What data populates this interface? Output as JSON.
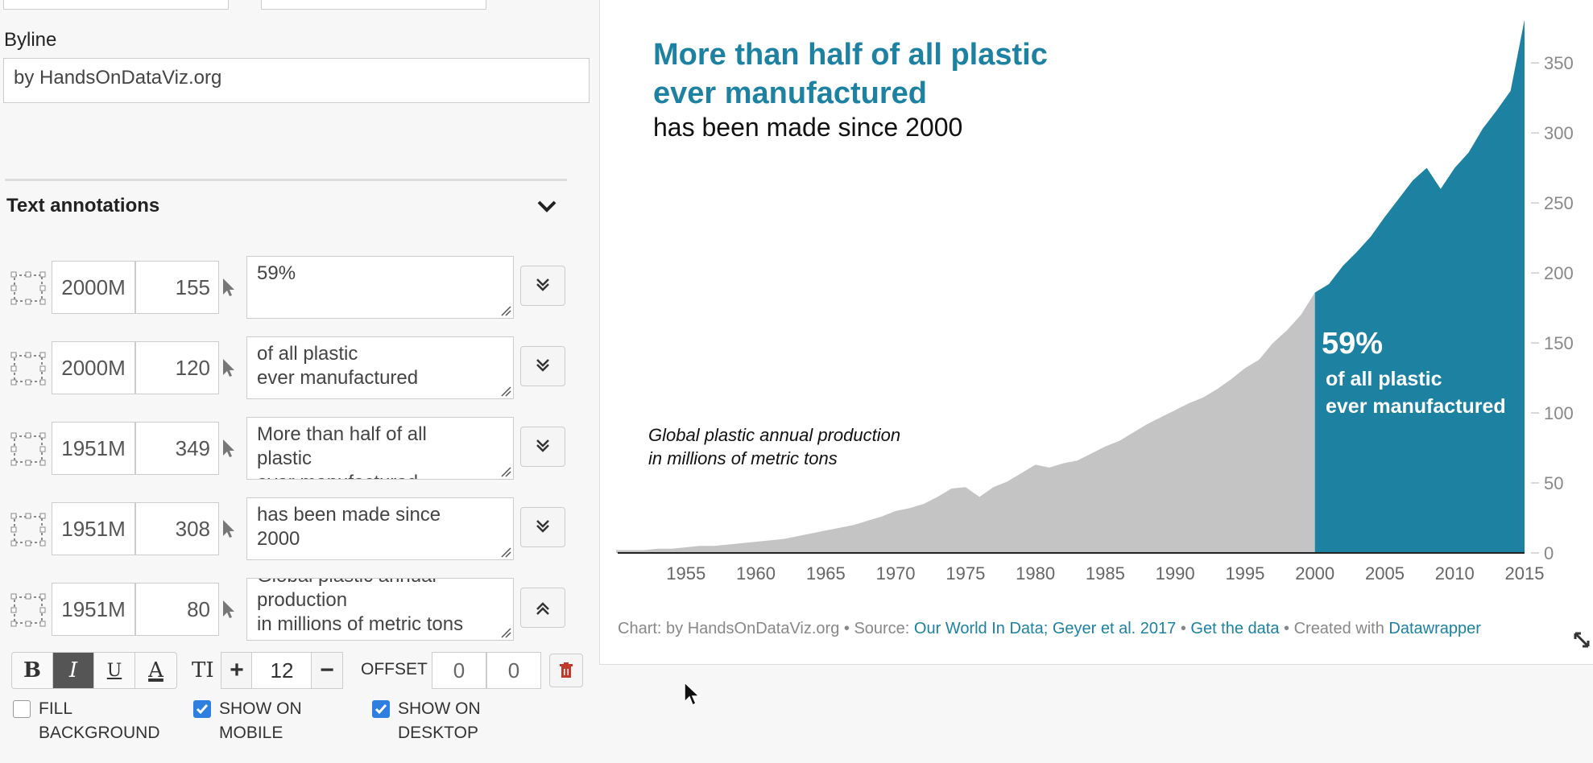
{
  "editor": {
    "byline_label": "Byline",
    "byline_value": "by HandsOnDataViz.org",
    "section_title": "Text annotations",
    "annotations": [
      {
        "x": "2000M",
        "y": "155",
        "text": "59%"
      },
      {
        "x": "2000M",
        "y": "120",
        "text": "of all plastic\never manufactured"
      },
      {
        "x": "1951M",
        "y": "349",
        "text": "More than half of all\nplastic\never manufactured"
      },
      {
        "x": "1951M",
        "y": "308",
        "text": "has been made since\n2000"
      },
      {
        "x": "1951M",
        "y": "80",
        "text": "Global plastic annual\nproduction\nin millions of metric tons"
      }
    ],
    "format": {
      "bold": "B",
      "italic": "I",
      "underline": "U",
      "color": "A",
      "size_icon": "TI",
      "plus": "+",
      "size": "12",
      "minus": "−",
      "offset_label": "OFFSET",
      "offset_x": "0",
      "offset_y": "0"
    },
    "checkboxes": [
      {
        "label": "FILL\nBACKGROUND",
        "checked": false
      },
      {
        "label": "SHOW ON\nMOBILE",
        "checked": true
      },
      {
        "label": "SHOW ON\nDESKTOP",
        "checked": true
      }
    ]
  },
  "chart": {
    "title_line1": "More than half of all plastic",
    "title_line2": "ever manufactured",
    "subtitle": "has been made since 2000",
    "annotation_left_1": "Global plastic annual production",
    "annotation_left_2": "in millions of metric tons",
    "annotation_pct": "59%",
    "annotation_of_1": "of all plastic",
    "annotation_of_2": "ever manufactured",
    "footer": {
      "chart_label": "Chart: by HandsOnDataViz.org • Source: ",
      "source_link": "Our World In Data; Geyer et al. 2017",
      "sep1": " • ",
      "data_link": "Get the data",
      "sep2": " • Created with ",
      "dw_link": "Datawrapper"
    },
    "colors": {
      "before": "#c4c4c4",
      "after": "#1d81a2"
    }
  },
  "chart_data": {
    "type": "area",
    "x": [
      1950,
      1951,
      1952,
      1953,
      1954,
      1955,
      1956,
      1957,
      1958,
      1959,
      1960,
      1961,
      1962,
      1963,
      1964,
      1965,
      1966,
      1967,
      1968,
      1969,
      1970,
      1971,
      1972,
      1973,
      1974,
      1975,
      1976,
      1977,
      1978,
      1979,
      1980,
      1981,
      1982,
      1983,
      1984,
      1985,
      1986,
      1987,
      1988,
      1989,
      1990,
      1991,
      1992,
      1993,
      1994,
      1995,
      1996,
      1997,
      1998,
      1999,
      2000,
      2001,
      2002,
      2003,
      2004,
      2005,
      2006,
      2007,
      2008,
      2009,
      2010,
      2011,
      2012,
      2013,
      2014,
      2015
    ],
    "series": [
      {
        "values": [
          2,
          2,
          2,
          3,
          3,
          4,
          5,
          5,
          6,
          7,
          8,
          9,
          10,
          12,
          14,
          16,
          18,
          20,
          23,
          26,
          30,
          32,
          35,
          40,
          46,
          47,
          40,
          47,
          51,
          57,
          63,
          61,
          64,
          66,
          71,
          76,
          80,
          86,
          92,
          97,
          102,
          107,
          111,
          117,
          124,
          132,
          138,
          150,
          159,
          170,
          186,
          192,
          205,
          215,
          226,
          240,
          253,
          266,
          275,
          260,
          275,
          286,
          303,
          316,
          330,
          381
        ],
        "split_year": 2000
      }
    ],
    "xlabel": "",
    "ylabel": "",
    "xticks": [
      1955,
      1960,
      1965,
      1970,
      1975,
      1980,
      1985,
      1990,
      1995,
      2000,
      2005,
      2010,
      2015
    ],
    "yticks": [
      0,
      50,
      100,
      150,
      200,
      250,
      300,
      350
    ],
    "ylim": [
      0,
      380
    ],
    "xlim": [
      1950,
      2015
    ]
  }
}
